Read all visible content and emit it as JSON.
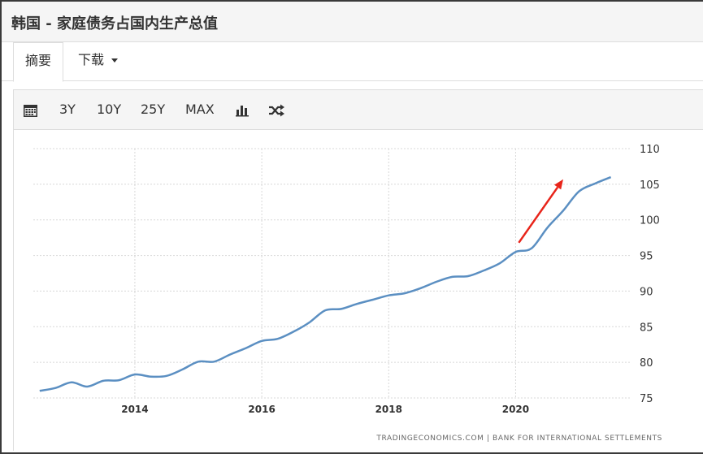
{
  "header": {
    "title": "韩国 - 家庭债务占国内生产总值"
  },
  "tabs": {
    "summary_label": "摘要",
    "download_label": "下载"
  },
  "toolbar": {
    "calendar_icon": "calendar-icon",
    "range_3y": "3Y",
    "range_10y": "10Y",
    "range_25y": "25Y",
    "range_max": "MAX",
    "bar_icon": "bar-chart-icon",
    "shuffle_icon": "shuffle-icon"
  },
  "chart_data": {
    "type": "line",
    "title": "",
    "xlabel": "",
    "ylabel": "",
    "xlim": [
      2012.4,
      2021.8
    ],
    "ylim": [
      75,
      110
    ],
    "x_ticks": [
      "2014",
      "2016",
      "2018",
      "2020"
    ],
    "y_ticks": [
      "75",
      "80",
      "85",
      "90",
      "95",
      "100",
      "105",
      "110"
    ],
    "y_axis_side": "right",
    "grid": true,
    "line_color": "#5b8fc2",
    "annotation_color": "#e8241a",
    "source": "TRADINGECONOMICS.COM  |  BANK FOR INTERNATIONAL SETTLEMENTS",
    "series": [
      {
        "x": [
          2012.5,
          2012.75,
          2013.0,
          2013.25,
          2013.5,
          2013.75,
          2014.0,
          2014.25,
          2014.5,
          2014.75,
          2015.0,
          2015.25,
          2015.5,
          2015.75,
          2016.0,
          2016.25,
          2016.5,
          2016.75,
          2017.0,
          2017.25,
          2017.5,
          2017.75,
          2018.0,
          2018.25,
          2018.5,
          2018.75,
          2019.0,
          2019.25,
          2019.5,
          2019.75,
          2020.0,
          2020.25,
          2020.5,
          2020.75,
          2021.0,
          2021.25,
          2021.5
        ],
        "values": [
          76.0,
          76.4,
          77.2,
          76.6,
          77.4,
          77.5,
          78.3,
          78.0,
          78.1,
          79.0,
          80.1,
          80.1,
          81.1,
          82.0,
          83.0,
          83.3,
          84.3,
          85.6,
          87.3,
          87.5,
          88.2,
          88.8,
          89.4,
          89.7,
          90.4,
          91.3,
          92.0,
          92.1,
          92.9,
          93.9,
          95.5,
          96.0,
          98.9,
          101.3,
          104.0,
          105.1,
          106.0
        ]
      }
    ]
  }
}
